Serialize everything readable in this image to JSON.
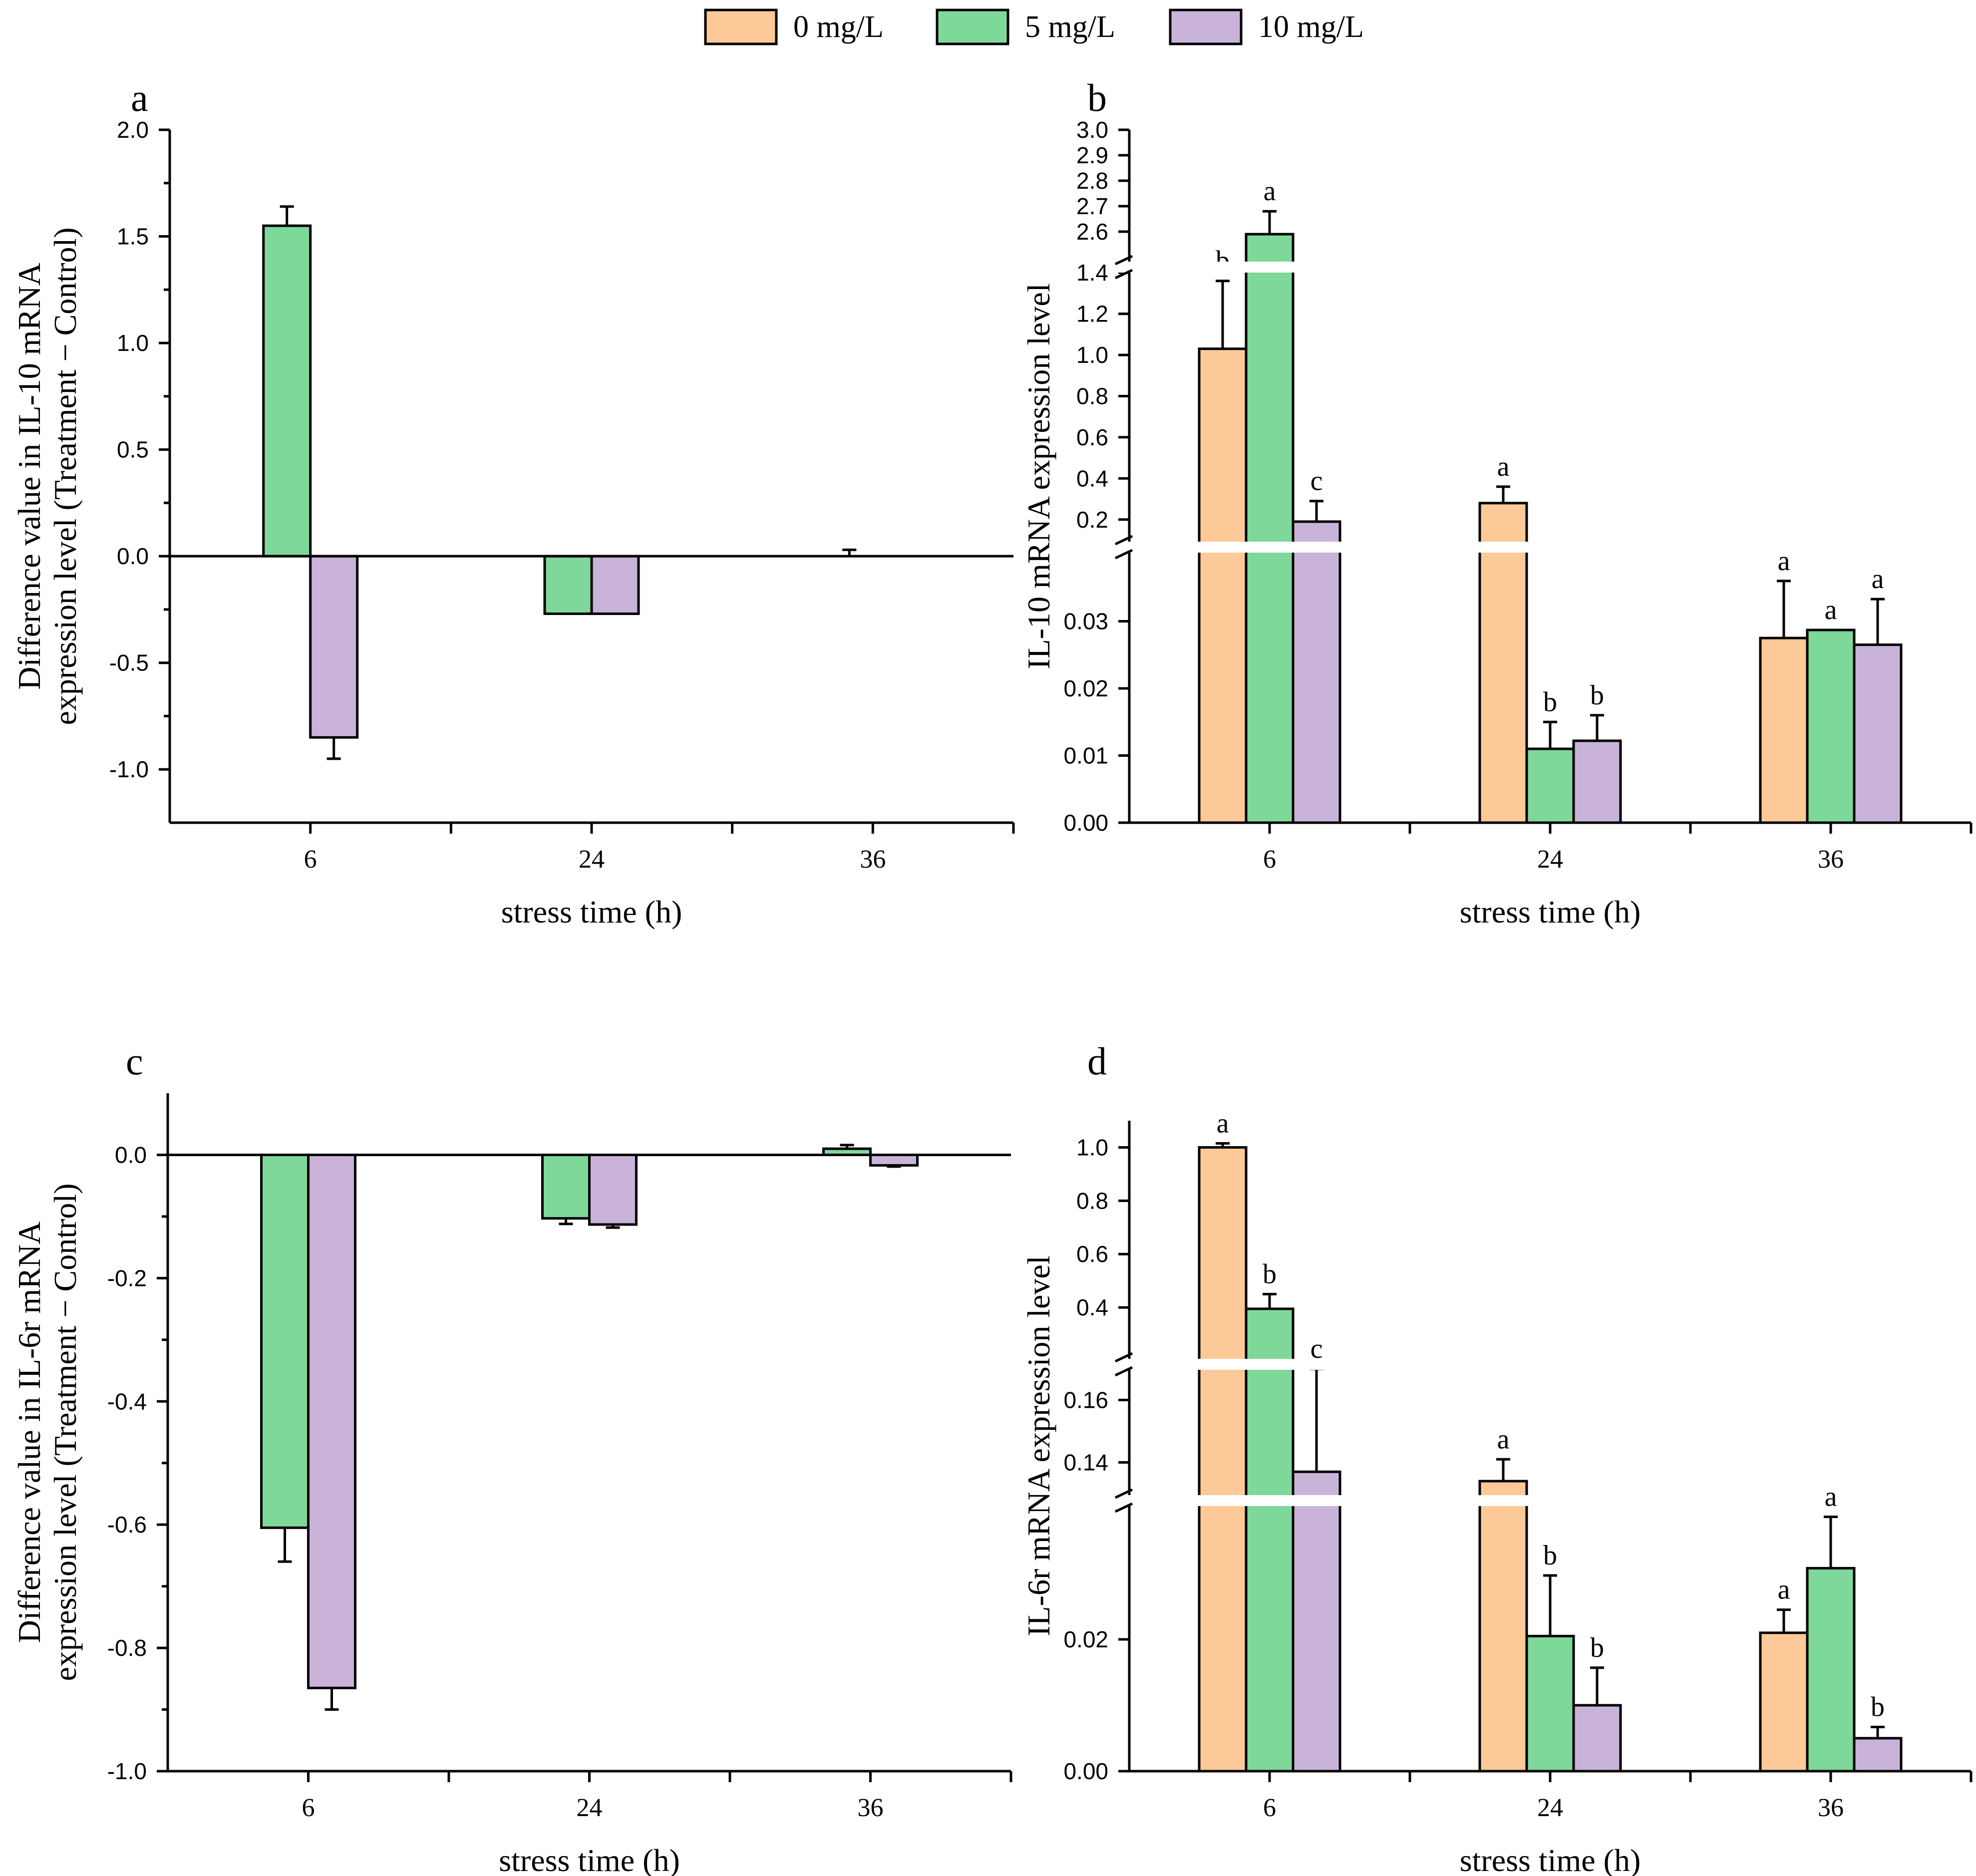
{
  "legend": {
    "items": [
      {
        "label": "0 mg/L",
        "color": "#FDC998"
      },
      {
        "label": "5 mg/L",
        "color": "#7ED89A"
      },
      {
        "label": "10 mg/L",
        "color": "#C9B3D9"
      }
    ]
  },
  "chart_data": [
    {
      "panel": "a",
      "type": "bar",
      "title": "a",
      "xlabel": "stress time (h)",
      "ylabel_line1": "Difference value in IL-10 mRNA",
      "ylabel_line2": "expression level (Treatment − Control)",
      "categories": [
        "6",
        "24",
        "36"
      ],
      "ylim": [
        -1.25,
        2.0
      ],
      "yticks": [
        2.0,
        1.5,
        1.0,
        0.5,
        0.0,
        -0.5,
        -1.0
      ],
      "ytick_labels": [
        "2.0",
        "1.5",
        "1.0",
        "0.5",
        "0.0",
        "-0.5",
        "-1.0"
      ],
      "series": [
        {
          "name": "5 mg/L",
          "values": [
            1.55,
            -0.27,
            0.0
          ],
          "errors": [
            0.09,
            0.0,
            0.03
          ]
        },
        {
          "name": "10 mg/L",
          "values": [
            -0.85,
            -0.27,
            0.0
          ],
          "errors": [
            0.1,
            0.0,
            0.0
          ]
        }
      ]
    },
    {
      "panel": "b",
      "type": "bar",
      "title": "b",
      "xlabel": "stress time (h)",
      "ylabel": "IL-10 mRNA expression level",
      "categories": [
        "6",
        "24",
        "36"
      ],
      "axis_break": true,
      "segments": [
        {
          "range": [
            0,
            0.04
          ],
          "ticks": [
            "0.00",
            "0.01",
            "0.02",
            "0.03"
          ]
        },
        {
          "range": [
            0.1,
            1.5
          ],
          "ticks": [
            "0.2",
            "0.4",
            "0.6",
            "0.8",
            "1.0",
            "1.2",
            "1.4"
          ]
        },
        {
          "range": [
            2.5,
            3.0
          ],
          "ticks": [
            "2.6",
            "2.7",
            "2.8",
            "2.9",
            "3.0"
          ]
        }
      ],
      "series": [
        {
          "name": "0 mg/L",
          "values": [
            1.03,
            0.28,
            0.0275
          ],
          "errors": [
            0.33,
            0.08,
            0.0085
          ],
          "letters": [
            "b",
            "a",
            "a"
          ]
        },
        {
          "name": "5 mg/L",
          "values": [
            2.59,
            0.011,
            0.0287
          ],
          "errors": [
            0.09,
            0.004,
            0.0
          ],
          "letters": [
            "a",
            "b",
            "a"
          ]
        },
        {
          "name": "10 mg/L",
          "values": [
            0.19,
            0.0122,
            0.0265
          ],
          "errors": [
            0.1,
            0.0038,
            0.0068
          ],
          "letters": [
            "c",
            "b",
            "a"
          ]
        }
      ]
    },
    {
      "panel": "c",
      "type": "bar",
      "title": "c",
      "xlabel": "stress time (h)",
      "ylabel_line1": "Difference value in IL-6r mRNA",
      "ylabel_line2": "expression level (Treatment − Control)",
      "categories": [
        "6",
        "24",
        "36"
      ],
      "ylim": [
        -1.0,
        0.1
      ],
      "yticks": [
        0.0,
        -0.2,
        -0.4,
        -0.6,
        -0.8,
        -1.0
      ],
      "ytick_labels": [
        "0.0",
        "-0.2",
        "-0.4",
        "-0.6",
        "-0.8",
        "-1.0"
      ],
      "series": [
        {
          "name": "5 mg/L",
          "values": [
            -0.605,
            -0.103,
            0.01
          ],
          "errors": [
            0.055,
            0.009,
            0.006
          ]
        },
        {
          "name": "10 mg/L",
          "values": [
            -0.865,
            -0.113,
            -0.017
          ],
          "errors": [
            0.035,
            0.005,
            0.002
          ]
        }
      ]
    },
    {
      "panel": "d",
      "type": "bar",
      "title": "d",
      "xlabel": "stress time (h)",
      "ylabel": "IL-6r mRNA expression level",
      "categories": [
        "6",
        "24",
        "36"
      ],
      "axis_break": true,
      "segments": [
        {
          "range": [
            0,
            0.04
          ],
          "ticks": [
            "0.00",
            "0.02"
          ]
        },
        {
          "range": [
            0.13,
            0.17
          ],
          "ticks": [
            "0.14",
            "0.16"
          ]
        },
        {
          "range": [
            0.2,
            1.1
          ],
          "ticks": [
            "0.4",
            "0.6",
            "0.8",
            "1.0"
          ]
        }
      ],
      "series": [
        {
          "name": "0 mg/L",
          "values": [
            1.0,
            0.134,
            0.021
          ],
          "errors": [
            0.015,
            0.007,
            0.0035
          ],
          "letters": [
            "a",
            "a",
            "a"
          ]
        },
        {
          "name": "5 mg/L",
          "values": [
            0.395,
            0.0205,
            0.0308
          ],
          "errors": [
            0.055,
            0.0092,
            0.0078
          ],
          "letters": [
            "b",
            "b",
            "a"
          ]
        },
        {
          "name": "10 mg/L",
          "values": [
            0.137,
            0.01,
            0.005
          ],
          "errors": [
            0.033,
            0.0057,
            0.0017
          ],
          "letters": [
            "c",
            "b",
            "b"
          ]
        }
      ]
    }
  ]
}
